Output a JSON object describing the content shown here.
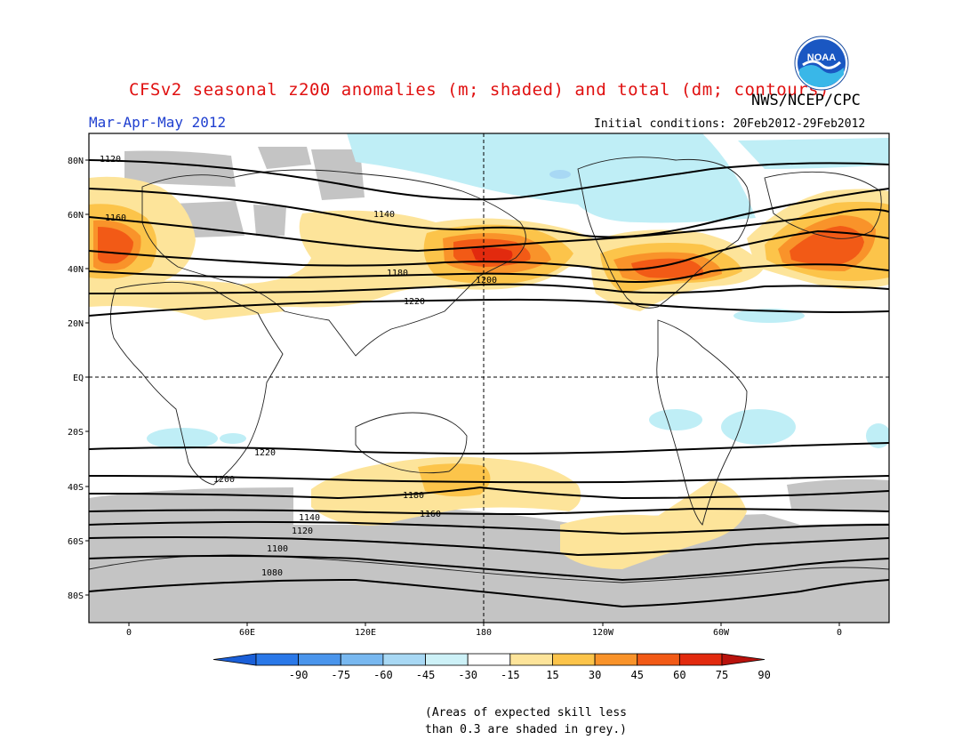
{
  "header": {
    "title": "CFSv2 seasonal z200 anomalies (m; shaded) and total (dm; contours)",
    "agency": "NWS/NCEP/CPC",
    "season": "Mar-Apr-May 2012",
    "initial_conditions": "Initial conditions: 20Feb2012-29Feb2012",
    "logo_text": "NOAA"
  },
  "axes": {
    "lat_labels": [
      "80N",
      "60N",
      "40N",
      "20N",
      "EQ",
      "20S",
      "40S",
      "60S",
      "80S"
    ],
    "lon_labels": [
      "0",
      "60E",
      "120E",
      "180",
      "120W",
      "60W",
      "0"
    ]
  },
  "contour_labels": [
    "1120",
    "1140",
    "1160",
    "1180",
    "1200",
    "1220",
    "1220",
    "1200",
    "1180",
    "1160",
    "1140",
    "1120",
    "1100",
    "1080"
  ],
  "colorbar": {
    "ticks": [
      "-90",
      "-75",
      "-60",
      "-45",
      "-30",
      "-15",
      "15",
      "30",
      "45",
      "60",
      "75",
      "90"
    ],
    "colors": [
      "#1a5fd8",
      "#2a78e8",
      "#4a95ec",
      "#78b8f0",
      "#a8d8f4",
      "#cdf1f7",
      "#ffffff",
      "#fde49a",
      "#fcc44a",
      "#f9932a",
      "#f25a16",
      "#e22a0e",
      "#b8120c"
    ]
  },
  "palette": {
    "skill_grey": "#c4c4c4",
    "light_blue": "#bfeef6",
    "title_red": "#e01010",
    "season_blue": "#2040d0"
  },
  "footnote": {
    "line1": "(Areas of expected skill less",
    "line2": "than 0.3 are shaded in grey.)"
  }
}
